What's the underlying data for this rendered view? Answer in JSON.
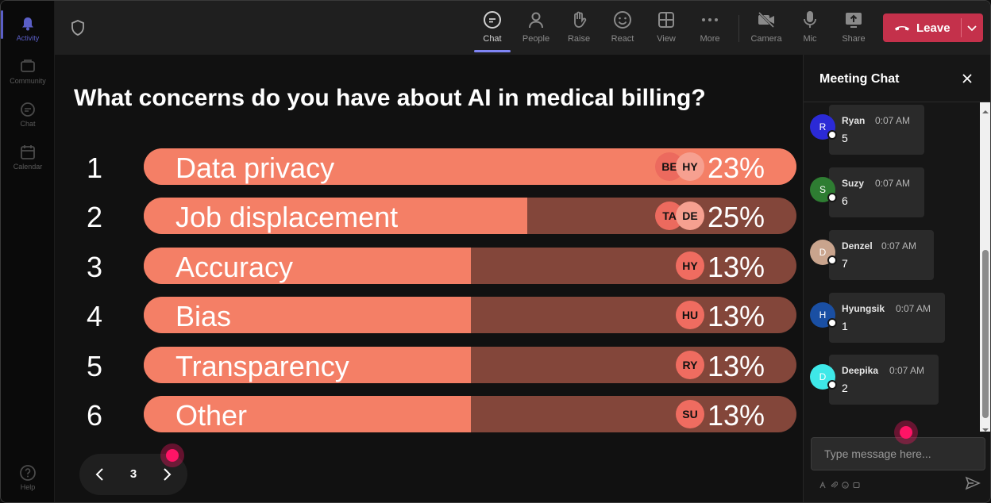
{
  "rail": {
    "items": [
      {
        "label": "Activity",
        "icon": "bell-icon",
        "active": true
      },
      {
        "label": "Community",
        "icon": "community-icon"
      },
      {
        "label": "Chat",
        "icon": "chat-icon"
      },
      {
        "label": "Calendar",
        "icon": "calendar-icon"
      }
    ],
    "help": {
      "label": "Help",
      "icon": "help-icon"
    }
  },
  "topbar": {
    "buttons": [
      {
        "label": "Chat",
        "icon": "chat-icon",
        "active": true
      },
      {
        "label": "People",
        "icon": "people-icon"
      },
      {
        "label": "Raise",
        "icon": "hand-icon"
      },
      {
        "label": "React",
        "icon": "smiley-icon"
      },
      {
        "label": "View",
        "icon": "grid-icon"
      },
      {
        "label": "More",
        "icon": "more-icon"
      },
      {
        "label": "Camera",
        "icon": "camera-off-icon"
      },
      {
        "label": "Mic",
        "icon": "mic-icon"
      },
      {
        "label": "Share",
        "icon": "share-icon"
      }
    ],
    "leave_label": "Leave",
    "leave_color": "#c4314b"
  },
  "poll": {
    "question": "What concerns do you have about AI in medical billing?",
    "bar_color": "#f47f66",
    "track_color": "#83463a",
    "options": [
      {
        "num": "1",
        "label": "Data privacy",
        "percent": "23%",
        "fill_fraction": 1.0,
        "avatars": [
          "BE",
          "HY"
        ]
      },
      {
        "num": "2",
        "label": "Job displacement",
        "percent": "25%",
        "fill_fraction": 0.587,
        "avatars": [
          "TA",
          "DE"
        ]
      },
      {
        "num": "3",
        "label": "Accuracy",
        "percent": "13%",
        "fill_fraction": 0.501,
        "avatars": [
          "HY"
        ]
      },
      {
        "num": "4",
        "label": "Bias",
        "percent": "13%",
        "fill_fraction": 0.501,
        "avatars": [
          "HU"
        ]
      },
      {
        "num": "5",
        "label": "Transparency",
        "percent": "13%",
        "fill_fraction": 0.501,
        "avatars": [
          "RY"
        ]
      },
      {
        "num": "6",
        "label": "Other",
        "percent": "13%",
        "fill_fraction": 0.501,
        "avatars": [
          "SU"
        ]
      }
    ],
    "page": "3"
  },
  "chat": {
    "title": "Meeting Chat",
    "messages": [
      {
        "initial": "R",
        "name": "Ryan",
        "time": "0:07 AM",
        "text": "5",
        "avatar_color": "#2b2ad6"
      },
      {
        "initial": "S",
        "name": "Suzy",
        "time": "0:07 AM",
        "text": "6",
        "avatar_color": "#2e7d32"
      },
      {
        "initial": "D",
        "name": "Denzel",
        "time": "0:07 AM",
        "text": "7",
        "avatar_color": "#c9a48d"
      },
      {
        "initial": "H",
        "name": "Hyungsik",
        "time": "0:07 AM",
        "text": "1",
        "avatar_color": "#1a4fa3"
      },
      {
        "initial": "D",
        "name": "Deepika",
        "time": "0:07 AM",
        "text": "2",
        "avatar_color": "#3ee8e8"
      }
    ],
    "input_placeholder": "Type message here..."
  }
}
